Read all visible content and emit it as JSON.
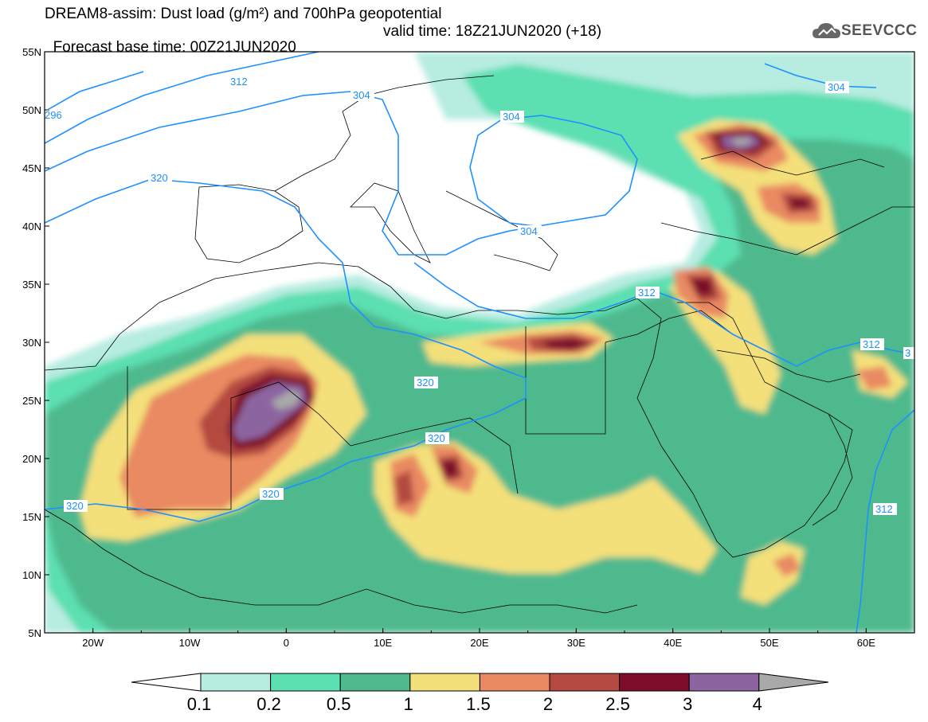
{
  "title": {
    "line1": "DREAM8-assim: Dust load (g/m²) and 700hPa geopotential",
    "line2": "Forecast base time: 00Z21JUN2020",
    "valid": "valid time: 18Z21JUN2020 (+18)"
  },
  "logo": {
    "text": "SEEVCCC",
    "icon": "cloud-icon"
  },
  "axes": {
    "lon_labels": [
      "20W",
      "10W",
      "0",
      "10E",
      "20E",
      "30E",
      "40E",
      "50E",
      "60E"
    ],
    "lat_labels": [
      "55N",
      "50N",
      "45N",
      "40N",
      "35N",
      "30N",
      "25N",
      "20N",
      "15N",
      "10N",
      "5N"
    ],
    "lon_range": [
      -25,
      65
    ],
    "lat_range": [
      5,
      55
    ]
  },
  "contours": {
    "labels": [
      "304",
      "312",
      "296",
      "304",
      "320",
      "304",
      "304",
      "312",
      "320",
      "320",
      "320",
      "320",
      "312",
      "312",
      "3"
    ]
  },
  "colorbar": {
    "labels": [
      "0.1",
      "0.2",
      "0.5",
      "1",
      "1.5",
      "2",
      "2.5",
      "3",
      "4"
    ],
    "colors": [
      "#ffffff",
      "#b7ece1",
      "#5cdfb1",
      "#4fb98e",
      "#f4e07a",
      "#e98a62",
      "#b44a41",
      "#7c0c2a",
      "#8c65a0",
      "#a9a9a9"
    ]
  }
}
